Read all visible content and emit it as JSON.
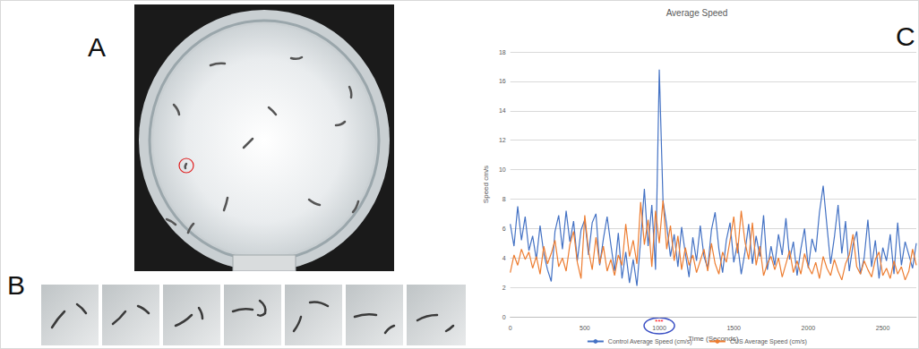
{
  "panels": [
    "A",
    "B",
    "C"
  ],
  "chart_data": {
    "type": "line",
    "title": "Average Speed",
    "x_label": "Time (Seconds)",
    "y_label": "Speed cm/s",
    "x": [
      0,
      25,
      50,
      75,
      100,
      125,
      150,
      175,
      200,
      225,
      250,
      275,
      300,
      325,
      350,
      375,
      400,
      425,
      450,
      475,
      500,
      525,
      550,
      575,
      600,
      625,
      650,
      675,
      700,
      725,
      750,
      775,
      800,
      825,
      850,
      875,
      900,
      925,
      950,
      975,
      1000,
      1025,
      1050,
      1075,
      1100,
      1125,
      1150,
      1175,
      1200,
      1225,
      1250,
      1275,
      1300,
      1325,
      1350,
      1375,
      1400,
      1425,
      1450,
      1475,
      1500,
      1525,
      1550,
      1575,
      1600,
      1625,
      1650,
      1675,
      1700,
      1725,
      1750,
      1775,
      1800,
      1825,
      1850,
      1875,
      1900,
      1925,
      1950,
      1975,
      2000,
      2025,
      2050,
      2075,
      2100,
      2125,
      2150,
      2175,
      2200,
      2225,
      2250,
      2275,
      2300,
      2325,
      2350,
      2375,
      2400,
      2425,
      2450,
      2475,
      2500,
      2525,
      2550,
      2575,
      2600,
      2625,
      2650,
      2675,
      2700,
      2725
    ],
    "series": [
      {
        "name": "Control Average Speed (cm/s)",
        "color": "#4472c4",
        "values": [
          6.3,
          4.8,
          7.5,
          5.2,
          6.8,
          4.5,
          5.5,
          3.9,
          6.2,
          4.3,
          3.2,
          2.4,
          5.8,
          6.9,
          4.6,
          7.2,
          5.1,
          6.5,
          3.8,
          5.9,
          6.6,
          4.2,
          6.4,
          7.0,
          3.5,
          5.3,
          6.8,
          4.9,
          3.1,
          5.7,
          2.6,
          4.4,
          2.3,
          3.9,
          2.1,
          5.2,
          8.7,
          4.8,
          7.6,
          3.2,
          16.8,
          7.9,
          6.2,
          4.1,
          5.6,
          3.4,
          6.1,
          4.3,
          2.7,
          5.4,
          3.8,
          6.2,
          4.1,
          3.3,
          5.9,
          7.1,
          4.6,
          3.0,
          5.2,
          6.4,
          3.7,
          5.0,
          2.9,
          4.4,
          6.3,
          3.6,
          5.5,
          4.1,
          6.9,
          3.2,
          4.8,
          3.5,
          5.6,
          4.2,
          6.7,
          3.9,
          5.1,
          2.8,
          4.6,
          6.0,
          3.3,
          5.3,
          4.4,
          7.1,
          8.9,
          6.2,
          3.6,
          5.4,
          7.6,
          4.3,
          6.5,
          3.1,
          4.9,
          5.8,
          2.9,
          4.0,
          6.6,
          3.4,
          5.2,
          2.6,
          4.7,
          3.8,
          5.6,
          2.9,
          6.4,
          3.5,
          5.1,
          4.2,
          3.3,
          5.0
        ]
      },
      {
        "name": "CUS Average Speed (cm/s)",
        "color": "#ed7d31",
        "values": [
          3.0,
          4.2,
          3.5,
          4.6,
          3.9,
          4.4,
          3.3,
          4.1,
          2.9,
          4.8,
          3.6,
          4.3,
          5.2,
          3.4,
          4.0,
          3.1,
          4.9,
          5.8,
          3.7,
          2.6,
          6.9,
          4.5,
          3.2,
          5.4,
          3.6,
          4.8,
          3.1,
          3.9,
          2.8,
          4.2,
          3.5,
          6.3,
          4.1,
          5.2,
          3.6,
          7.8,
          4.9,
          6.6,
          3.4,
          7.2,
          5.0,
          7.9,
          4.6,
          6.2,
          3.8,
          5.5,
          3.2,
          4.7,
          3.5,
          4.2,
          3.0,
          3.8,
          4.6,
          3.1,
          5.0,
          3.6,
          2.9,
          4.4,
          3.7,
          5.2,
          6.8,
          4.3,
          7.2,
          5.1,
          3.9,
          6.4,
          3.5,
          4.8,
          2.8,
          3.6,
          4.1,
          3.2,
          4.0,
          2.7,
          3.6,
          4.5,
          3.0,
          3.8,
          2.9,
          4.3,
          3.4,
          2.9,
          3.7,
          2.6,
          4.1,
          3.3,
          2.8,
          3.9,
          3.1,
          2.5,
          3.6,
          4.2,
          5.6,
          3.4,
          2.9,
          3.8,
          3.2,
          2.7,
          3.9,
          4.4,
          2.8,
          3.3,
          2.6,
          3.8,
          2.9,
          3.4,
          2.5,
          3.1,
          4.6,
          3.5
        ]
      }
    ],
    "xlim": [
      0,
      2725
    ],
    "xticks": [
      0,
      500,
      1000,
      1500,
      2000,
      2500
    ],
    "ylim": [
      0,
      18
    ],
    "yticks": [
      0,
      2,
      4,
      6,
      8,
      10,
      12,
      14,
      16,
      18
    ],
    "grid": true,
    "legend": "bottom",
    "annotations": [
      {
        "text": "***",
        "x": 1000,
        "color": "#ff0000"
      }
    ]
  }
}
